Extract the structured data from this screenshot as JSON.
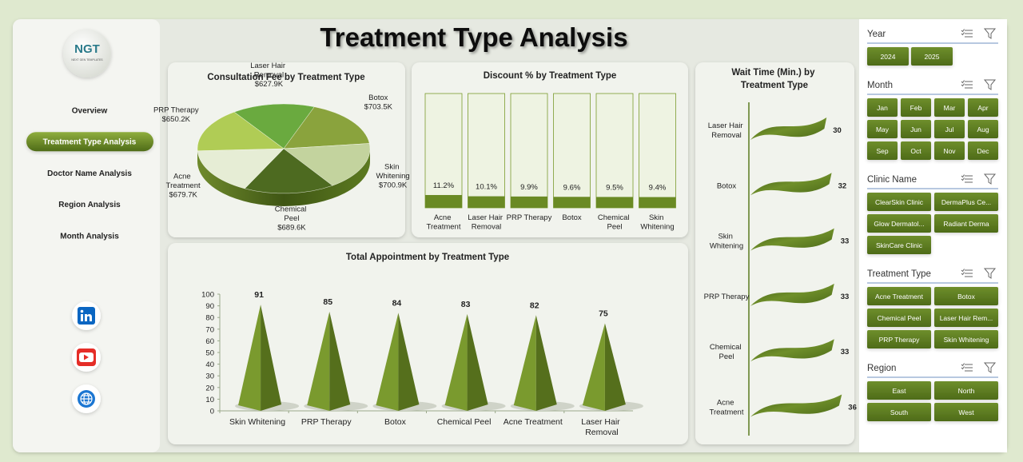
{
  "title": "Treatment Type Analysis",
  "logo": {
    "initials": "NGT",
    "name": "NEXT GEN TEMPLATES"
  },
  "navigation": {
    "items": [
      "Overview",
      "Treatment Type Analysis",
      "Doctor Name Analysis",
      "Region Analysis",
      "Month Analysis"
    ],
    "active_index": 1
  },
  "chart_data": [
    {
      "type": "pie",
      "title": "Consultation Fee by Treatment Type",
      "categories": [
        "Laser Hair Removal",
        "Botox",
        "Skin Whitening",
        "Chemical Peel",
        "Acne Treatment",
        "PRP Therapy"
      ],
      "values": [
        627900,
        703500,
        700900,
        689600,
        679700,
        650200
      ],
      "value_labels": [
        "$627.9K",
        "$703.5K",
        "$700.9K",
        "$689.6K",
        "$679.7K",
        "$650.2K"
      ],
      "colors": [
        "#6aaa3f",
        "#8aa33d",
        "#c3d39e",
        "#4d6a20",
        "#e6edd5",
        "#b0cc55"
      ]
    },
    {
      "type": "bar",
      "title": "Discount % by Treatment Type",
      "categories": [
        "Acne Treatment",
        "Laser Hair Removal",
        "PRP Therapy",
        "Botox",
        "Chemical Peel",
        "Skin Whitening"
      ],
      "values": [
        11.2,
        10.1,
        9.9,
        9.6,
        9.5,
        9.4
      ],
      "value_labels": [
        "11.2%",
        "10.1%",
        "9.9%",
        "9.6%",
        "9.5%",
        "9.4%"
      ],
      "ylim": [
        0,
        100
      ],
      "color": "#6a8a24",
      "track_color": "#eef3e2"
    },
    {
      "type": "bar",
      "shape": "pyramid",
      "title": "Total Appointment by Treatment Type",
      "categories": [
        "Skin Whitening",
        "PRP Therapy",
        "Botox",
        "Chemical Peel",
        "Acne Treatment",
        "Laser Hair Removal"
      ],
      "values": [
        91,
        85,
        84,
        83,
        82,
        75
      ],
      "ylim": [
        0,
        100
      ],
      "yticks": [
        0,
        10,
        20,
        30,
        40,
        50,
        60,
        70,
        80,
        90,
        100
      ],
      "color": "#7a9a2e"
    },
    {
      "type": "bar",
      "orientation": "horizontal",
      "shape": "flag",
      "title": "Wait Time (Min.) by Treatment Type",
      "categories": [
        "Laser Hair Removal",
        "Botox",
        "Skin Whitening",
        "PRP Therapy",
        "Chemical Peel",
        "Acne Treatment"
      ],
      "values": [
        30,
        32,
        33,
        33,
        33,
        36
      ],
      "xlim": [
        0,
        40
      ],
      "color": "#5a7a1e"
    }
  ],
  "slicers": [
    {
      "title": "Year",
      "items": [
        "2024",
        "2025"
      ]
    },
    {
      "title": "Month",
      "items": [
        "Jan",
        "Feb",
        "Mar",
        "Apr",
        "May",
        "Jun",
        "Jul",
        "Aug",
        "Sep",
        "Oct",
        "Nov",
        "Dec"
      ]
    },
    {
      "title": "Clinic Name",
      "items": [
        "ClearSkin Clinic",
        "DermaPlus Ce...",
        "Glow Dermatol...",
        "Radiant Derma",
        "SkinCare Clinic"
      ]
    },
    {
      "title": "Treatment Type",
      "items": [
        "Acne Treatment",
        "Botox",
        "Chemical Peel",
        "Laser Hair Rem...",
        "PRP Therapy",
        "Skin Whitening"
      ]
    },
    {
      "title": "Region",
      "items": [
        "East",
        "North",
        "South",
        "West"
      ]
    }
  ]
}
